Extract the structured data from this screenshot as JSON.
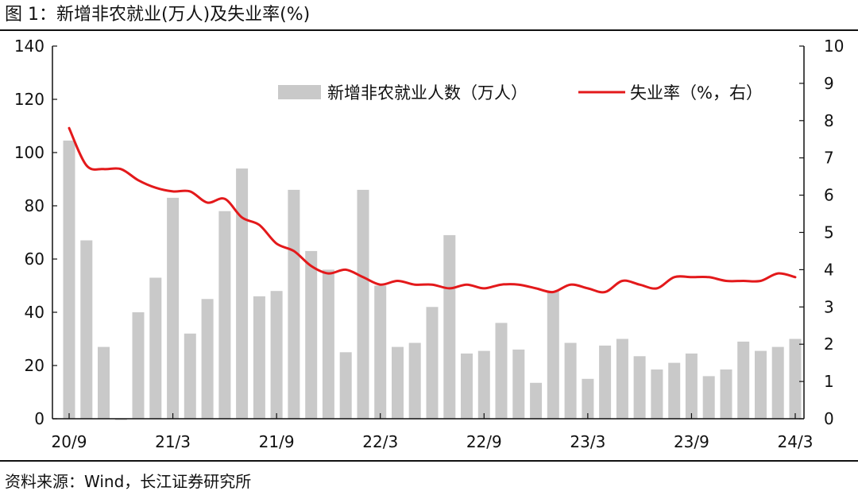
{
  "figure": {
    "title": "图 1：新增非农就业(万人)及失业率(%)",
    "source": "资料来源：Wind，长江证券研究所"
  },
  "colors": {
    "bar": "#c9c9c9",
    "line": "#e3191b",
    "axis": "#111111"
  },
  "chart_data": {
    "type": "bar",
    "categories": [
      "2020-09",
      "2020-10",
      "2020-11",
      "2020-12",
      "2021-01",
      "2021-02",
      "2021-03",
      "2021-04",
      "2021-05",
      "2021-06",
      "2021-07",
      "2021-08",
      "2021-09",
      "2021-10",
      "2021-11",
      "2021-12",
      "2022-01",
      "2022-02",
      "2022-03",
      "2022-04",
      "2022-05",
      "2022-06",
      "2022-07",
      "2022-08",
      "2022-09",
      "2022-10",
      "2022-11",
      "2022-12",
      "2023-01",
      "2023-02",
      "2023-03",
      "2023-04",
      "2023-05",
      "2023-06",
      "2023-07",
      "2023-08",
      "2023-09",
      "2023-10",
      "2023-11",
      "2023-12",
      "2024-01",
      "2024-02",
      "2024-03"
    ],
    "tick_labels": [
      {
        "index": 0,
        "label": "20/9"
      },
      {
        "index": 6,
        "label": "21/3"
      },
      {
        "index": 12,
        "label": "21/9"
      },
      {
        "index": 18,
        "label": "22/3"
      },
      {
        "index": 24,
        "label": "22/9"
      },
      {
        "index": 30,
        "label": "23/3"
      },
      {
        "index": 36,
        "label": "23/9"
      },
      {
        "index": 42,
        "label": "24/3"
      }
    ],
    "series": [
      {
        "name": "新增非农就业人数（万人）",
        "type": "bar",
        "axis": "left",
        "values": [
          104.5,
          67,
          27,
          -0.5,
          40,
          53,
          83,
          32,
          45,
          78,
          94,
          46,
          48,
          86,
          63,
          56,
          25,
          86,
          50,
          27,
          28.5,
          42,
          69,
          24.5,
          25.5,
          36,
          26,
          13.5,
          48,
          28.5,
          15,
          27.5,
          30,
          23.5,
          18.5,
          21,
          24.5,
          16,
          18.5,
          29,
          25.5,
          27,
          30
        ]
      },
      {
        "name": "失业率（%，右）",
        "type": "line",
        "axis": "right",
        "values": [
          7.8,
          6.8,
          6.7,
          6.7,
          6.4,
          6.2,
          6.1,
          6.1,
          5.8,
          5.9,
          5.4,
          5.2,
          4.7,
          4.5,
          4.1,
          3.9,
          4.0,
          3.8,
          3.6,
          3.7,
          3.6,
          3.6,
          3.5,
          3.6,
          3.5,
          3.6,
          3.6,
          3.5,
          3.4,
          3.6,
          3.5,
          3.4,
          3.7,
          3.6,
          3.5,
          3.8,
          3.8,
          3.8,
          3.7,
          3.7,
          3.7,
          3.9,
          3.8
        ]
      }
    ],
    "y_left": {
      "min": 0,
      "max": 140,
      "ticks": [
        0,
        20,
        40,
        60,
        80,
        100,
        120,
        140
      ]
    },
    "y_right": {
      "min": 0,
      "max": 10,
      "ticks": [
        0,
        1,
        2,
        3,
        4,
        5,
        6,
        7,
        8,
        9,
        10
      ]
    },
    "grid": false,
    "legend_placement": "top-right"
  }
}
